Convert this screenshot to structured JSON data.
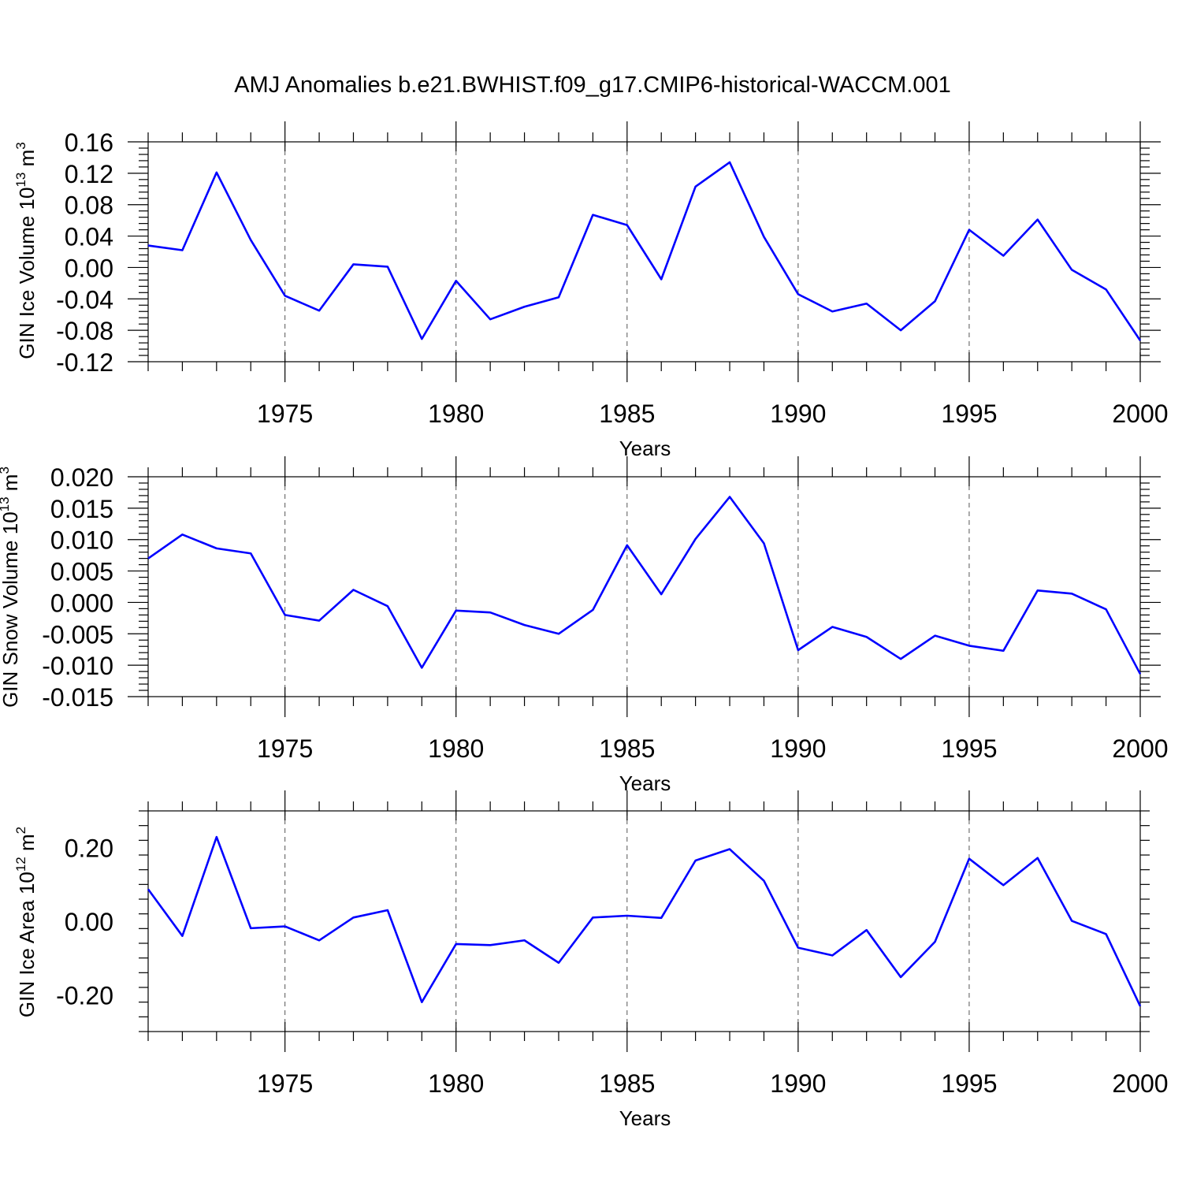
{
  "title": "AMJ Anomalies b.e21.BWHIST.f09_g17.CMIP6-historical-WACCM.001",
  "colors": {
    "line": "#0000ff",
    "axis": "#000000",
    "grid": "#555555"
  },
  "chart_data": [
    {
      "type": "line",
      "title": "",
      "xlabel": "Years",
      "ylabel": "GIN Ice Volume 10",
      "ylabel_exp": "13",
      "ylabel_unit": " m",
      "ylabel_unit_exp": "3",
      "xlim": [
        1971,
        2000
      ],
      "ylim": [
        -0.12,
        0.16
      ],
      "yticks": [
        -0.12,
        -0.08,
        -0.04,
        0.0,
        0.04,
        0.08,
        0.12,
        0.16
      ],
      "ytick_labels": [
        "-0.12",
        "-0.08",
        "-0.04",
        "0.00",
        "0.04",
        "0.08",
        "0.12",
        "0.16"
      ],
      "xticks": [
        1975,
        1980,
        1985,
        1990,
        1995,
        2000
      ],
      "xtick_labels": [
        "1975",
        "1980",
        "1985",
        "1990",
        "1995",
        "2000"
      ],
      "x": [
        1971,
        1972,
        1973,
        1974,
        1975,
        1976,
        1977,
        1978,
        1979,
        1980,
        1981,
        1982,
        1983,
        1984,
        1985,
        1986,
        1987,
        1988,
        1989,
        1990,
        1991,
        1992,
        1993,
        1994,
        1995,
        1996,
        1997,
        1998,
        1999,
        2000
      ],
      "series": [
        {
          "name": "GIN Ice Volume",
          "color": "#0000ff",
          "values": [
            0.028,
            0.022,
            0.121,
            0.035,
            -0.036,
            -0.055,
            0.004,
            0.001,
            -0.091,
            -0.017,
            -0.066,
            -0.05,
            -0.038,
            0.067,
            0.054,
            -0.015,
            0.103,
            0.134,
            0.039,
            -0.034,
            -0.056,
            -0.046,
            -0.08,
            -0.043,
            0.048,
            0.015,
            0.061,
            -0.003,
            -0.028,
            -0.093
          ]
        }
      ]
    },
    {
      "type": "line",
      "title": "",
      "xlabel": "Years",
      "ylabel": "GIN Snow Volume 10",
      "ylabel_exp": "13",
      "ylabel_unit": " m",
      "ylabel_unit_exp": "3",
      "xlim": [
        1971,
        2000
      ],
      "ylim": [
        -0.015,
        0.02
      ],
      "yticks": [
        -0.015,
        -0.01,
        -0.005,
        0.0,
        0.005,
        0.01,
        0.015,
        0.02
      ],
      "ytick_labels": [
        "-0.015",
        "-0.010",
        "-0.005",
        "0.000",
        "0.005",
        "0.010",
        "0.015",
        "0.020"
      ],
      "xticks": [
        1975,
        1980,
        1985,
        1990,
        1995,
        2000
      ],
      "xtick_labels": [
        "1975",
        "1980",
        "1985",
        "1990",
        "1995",
        "2000"
      ],
      "x": [
        1971,
        1972,
        1973,
        1974,
        1975,
        1976,
        1977,
        1978,
        1979,
        1980,
        1981,
        1982,
        1983,
        1984,
        1985,
        1986,
        1987,
        1988,
        1989,
        1990,
        1991,
        1992,
        1993,
        1994,
        1995,
        1996,
        1997,
        1998,
        1999,
        2000
      ],
      "series": [
        {
          "name": "GIN Snow Volume",
          "color": "#0000ff",
          "values": [
            0.007,
            0.0108,
            0.0086,
            0.0078,
            -0.002,
            -0.0029,
            0.002,
            -0.0006,
            -0.0104,
            -0.0013,
            -0.0016,
            -0.0036,
            -0.005,
            -0.0012,
            0.0091,
            0.0013,
            0.0101,
            0.0168,
            0.0094,
            -0.0076,
            -0.0039,
            -0.0055,
            -0.009,
            -0.0053,
            -0.0069,
            -0.0077,
            0.0019,
            0.0014,
            -0.0011,
            -0.0114
          ]
        }
      ]
    },
    {
      "type": "line",
      "title": "",
      "xlabel": "Years",
      "ylabel": "GIN Ice Area 10",
      "ylabel_exp": "12",
      "ylabel_unit": " m",
      "ylabel_unit_exp": "2",
      "xlim": [
        1971,
        2000
      ],
      "ylim": [
        -0.3,
        0.3
      ],
      "yticks": [
        -0.2,
        0.0,
        0.2
      ],
      "ytick_labels": [
        "-0.20",
        "0.00",
        "0.20"
      ],
      "xticks": [
        1975,
        1980,
        1985,
        1990,
        1995,
        2000
      ],
      "xtick_labels": [
        "1975",
        "1980",
        "1985",
        "1990",
        "1995",
        "2000"
      ],
      "x": [
        1971,
        1972,
        1973,
        1974,
        1975,
        1976,
        1977,
        1978,
        1979,
        1980,
        1981,
        1982,
        1983,
        1984,
        1985,
        1986,
        1987,
        1988,
        1989,
        1990,
        1991,
        1992,
        1993,
        1994,
        1995,
        1996,
        1997,
        1998,
        1999,
        2000
      ],
      "series": [
        {
          "name": "GIN Ice Area",
          "color": "#0000ff",
          "values": [
            0.087,
            -0.04,
            0.229,
            -0.019,
            -0.014,
            -0.052,
            0.01,
            0.03,
            -0.22,
            -0.062,
            -0.065,
            -0.052,
            -0.113,
            0.01,
            0.015,
            0.009,
            0.165,
            0.196,
            0.11,
            -0.072,
            -0.093,
            -0.024,
            -0.152,
            -0.056,
            0.17,
            0.098,
            0.172,
            0.001,
            -0.035,
            -0.231
          ]
        }
      ]
    }
  ]
}
